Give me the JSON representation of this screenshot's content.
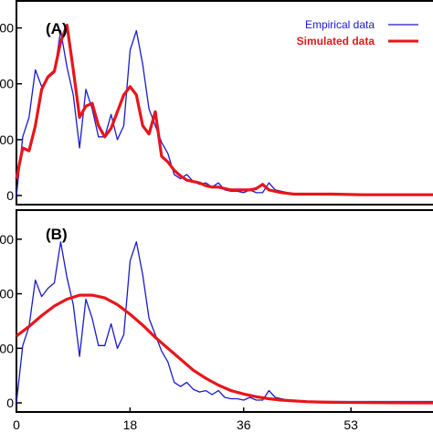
{
  "chart_data": [
    {
      "type": "line",
      "panel_label": "(A)",
      "x_range": [
        0,
        66
      ],
      "y_range": [
        0,
        1400
      ],
      "y_tick_labels": [
        "0",
        "00",
        "00",
        "00"
      ],
      "y_tick_values": [
        0,
        400,
        800,
        1200
      ],
      "legend": {
        "placement": "top-right",
        "entries": [
          {
            "label": "Empirical data",
            "color": "#1a1acc",
            "bold": false
          },
          {
            "label": "Simulated data",
            "color": "#e8151b",
            "bold": true
          }
        ]
      },
      "series": [
        {
          "name": "Empirical data",
          "color": "#1a1acc",
          "x": [
            0,
            1,
            2,
            3,
            4,
            5,
            6,
            7,
            8,
            9,
            10,
            11,
            12,
            13,
            14,
            15,
            16,
            17,
            18,
            19,
            20,
            21,
            22,
            23,
            24,
            25,
            26,
            27,
            28,
            29,
            30,
            31,
            32,
            33,
            34,
            35,
            36,
            37,
            38,
            39,
            40,
            41,
            42,
            43,
            44,
            45,
            46,
            47,
            48,
            49,
            50,
            55,
            60,
            66
          ],
          "y": [
            0,
            420,
            560,
            900,
            780,
            840,
            880,
            1180,
            920,
            720,
            340,
            760,
            620,
            420,
            420,
            580,
            400,
            500,
            1040,
            1180,
            940,
            620,
            500,
            380,
            300,
            150,
            120,
            150,
            100,
            80,
            90,
            60,
            90,
            40,
            30,
            30,
            20,
            40,
            20,
            20,
            90,
            40,
            30,
            20,
            10,
            10,
            10,
            10,
            10,
            10,
            10,
            10,
            10,
            10
          ]
        },
        {
          "name": "Simulated data",
          "color": "#e8151b",
          "x": [
            0,
            1,
            2,
            3,
            4,
            5,
            6,
            7,
            8,
            9,
            10,
            11,
            12,
            13,
            14,
            15,
            16,
            17,
            18,
            19,
            20,
            21,
            22,
            23,
            24,
            25,
            26,
            27,
            28,
            29,
            30,
            31,
            32,
            33,
            34,
            35,
            36,
            37,
            38,
            39,
            40,
            41,
            42,
            43,
            44,
            45,
            46,
            47,
            48,
            49,
            50,
            55,
            60,
            66
          ],
          "y": [
            120,
            340,
            320,
            500,
            760,
            850,
            890,
            1100,
            1220,
            900,
            560,
            640,
            660,
            500,
            420,
            480,
            600,
            720,
            780,
            720,
            500,
            440,
            600,
            280,
            240,
            180,
            140,
            110,
            100,
            90,
            70,
            60,
            60,
            50,
            40,
            40,
            40,
            40,
            50,
            80,
            40,
            30,
            20,
            15,
            10,
            10,
            10,
            10,
            10,
            10,
            10,
            5,
            5,
            5
          ]
        }
      ]
    },
    {
      "type": "line",
      "panel_label": "(B)",
      "x_range": [
        0,
        66
      ],
      "y_range": [
        0,
        1400
      ],
      "x_tick_labels": [
        "0",
        "18",
        "36",
        "53"
      ],
      "x_tick_values": [
        0,
        18,
        36,
        53
      ],
      "y_tick_labels": [
        "0",
        "00",
        "00",
        "00"
      ],
      "y_tick_values": [
        0,
        400,
        800,
        1200
      ],
      "series": [
        {
          "name": "Empirical data",
          "color": "#1a1acc",
          "x": [
            0,
            1,
            2,
            3,
            4,
            5,
            6,
            7,
            8,
            9,
            10,
            11,
            12,
            13,
            14,
            15,
            16,
            17,
            18,
            19,
            20,
            21,
            22,
            23,
            24,
            25,
            26,
            27,
            28,
            29,
            30,
            31,
            32,
            33,
            34,
            35,
            36,
            37,
            38,
            39,
            40,
            41,
            42,
            43,
            44,
            45,
            46,
            47,
            48,
            49,
            50,
            55,
            60,
            66
          ],
          "y": [
            0,
            420,
            560,
            900,
            780,
            840,
            880,
            1180,
            920,
            720,
            340,
            760,
            620,
            420,
            420,
            580,
            400,
            500,
            1040,
            1180,
            940,
            620,
            500,
            380,
            300,
            150,
            120,
            150,
            100,
            80,
            90,
            60,
            90,
            40,
            30,
            30,
            20,
            40,
            20,
            20,
            90,
            40,
            30,
            20,
            10,
            10,
            10,
            10,
            10,
            10,
            10,
            10,
            10,
            10
          ]
        },
        {
          "name": "Simulated data",
          "color": "#e8151b",
          "x": [
            0,
            2,
            4,
            6,
            8,
            10,
            12,
            14,
            16,
            18,
            20,
            22,
            24,
            26,
            28,
            30,
            32,
            34,
            36,
            38,
            40,
            42,
            44,
            46,
            48,
            50,
            55,
            60,
            66
          ],
          "y": [
            490,
            560,
            640,
            710,
            760,
            790,
            790,
            770,
            720,
            650,
            570,
            480,
            400,
            320,
            240,
            180,
            130,
            90,
            65,
            45,
            30,
            20,
            14,
            9,
            6,
            4,
            2,
            1,
            0
          ]
        }
      ]
    }
  ]
}
